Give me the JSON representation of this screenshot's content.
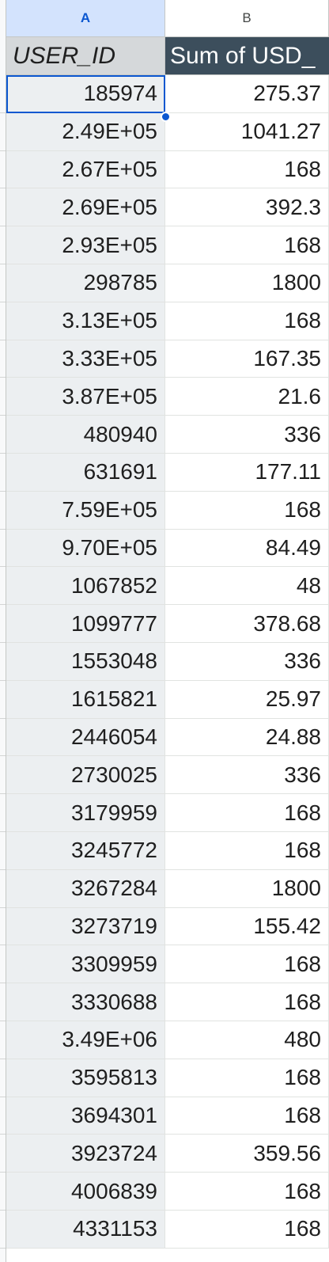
{
  "columns": {
    "a": "A",
    "b": "B"
  },
  "table": {
    "header": {
      "a": "USER_ID",
      "b": "Sum of USD_"
    },
    "rows": [
      {
        "a": "185974",
        "b": "275.37"
      },
      {
        "a": "2.49E+05",
        "b": "1041.27"
      },
      {
        "a": "2.67E+05",
        "b": "168"
      },
      {
        "a": "2.69E+05",
        "b": "392.3"
      },
      {
        "a": "2.93E+05",
        "b": "168"
      },
      {
        "a": "298785",
        "b": "1800"
      },
      {
        "a": "3.13E+05",
        "b": "168"
      },
      {
        "a": "3.33E+05",
        "b": "167.35"
      },
      {
        "a": "3.87E+05",
        "b": "21.6"
      },
      {
        "a": "480940",
        "b": "336"
      },
      {
        "a": "631691",
        "b": "177.11"
      },
      {
        "a": "7.59E+05",
        "b": "168"
      },
      {
        "a": "9.70E+05",
        "b": "84.49"
      },
      {
        "a": "1067852",
        "b": "48"
      },
      {
        "a": "1099777",
        "b": "378.68"
      },
      {
        "a": "1553048",
        "b": "336"
      },
      {
        "a": "1615821",
        "b": "25.97"
      },
      {
        "a": "2446054",
        "b": "24.88"
      },
      {
        "a": "2730025",
        "b": "336"
      },
      {
        "a": "3179959",
        "b": "168"
      },
      {
        "a": "3245772",
        "b": "168"
      },
      {
        "a": "3267284",
        "b": "1800"
      },
      {
        "a": "3273719",
        "b": "155.42"
      },
      {
        "a": "3309959",
        "b": "168"
      },
      {
        "a": "3330688",
        "b": "168"
      },
      {
        "a": "3.49E+06",
        "b": "480"
      },
      {
        "a": "3595813",
        "b": "168"
      },
      {
        "a": "3694301",
        "b": "168"
      },
      {
        "a": "3923724",
        "b": "359.56"
      },
      {
        "a": "4006839",
        "b": "168"
      },
      {
        "a": "4331153",
        "b": "168"
      }
    ]
  },
  "colors": {
    "selected_column_header": "#d3e3fd",
    "selection_border": "#0b57d0",
    "pivot_header_dark": "#3c4e5c",
    "pivot_header_light": "#d5d8da",
    "row_label_fill": "#eceff1"
  }
}
